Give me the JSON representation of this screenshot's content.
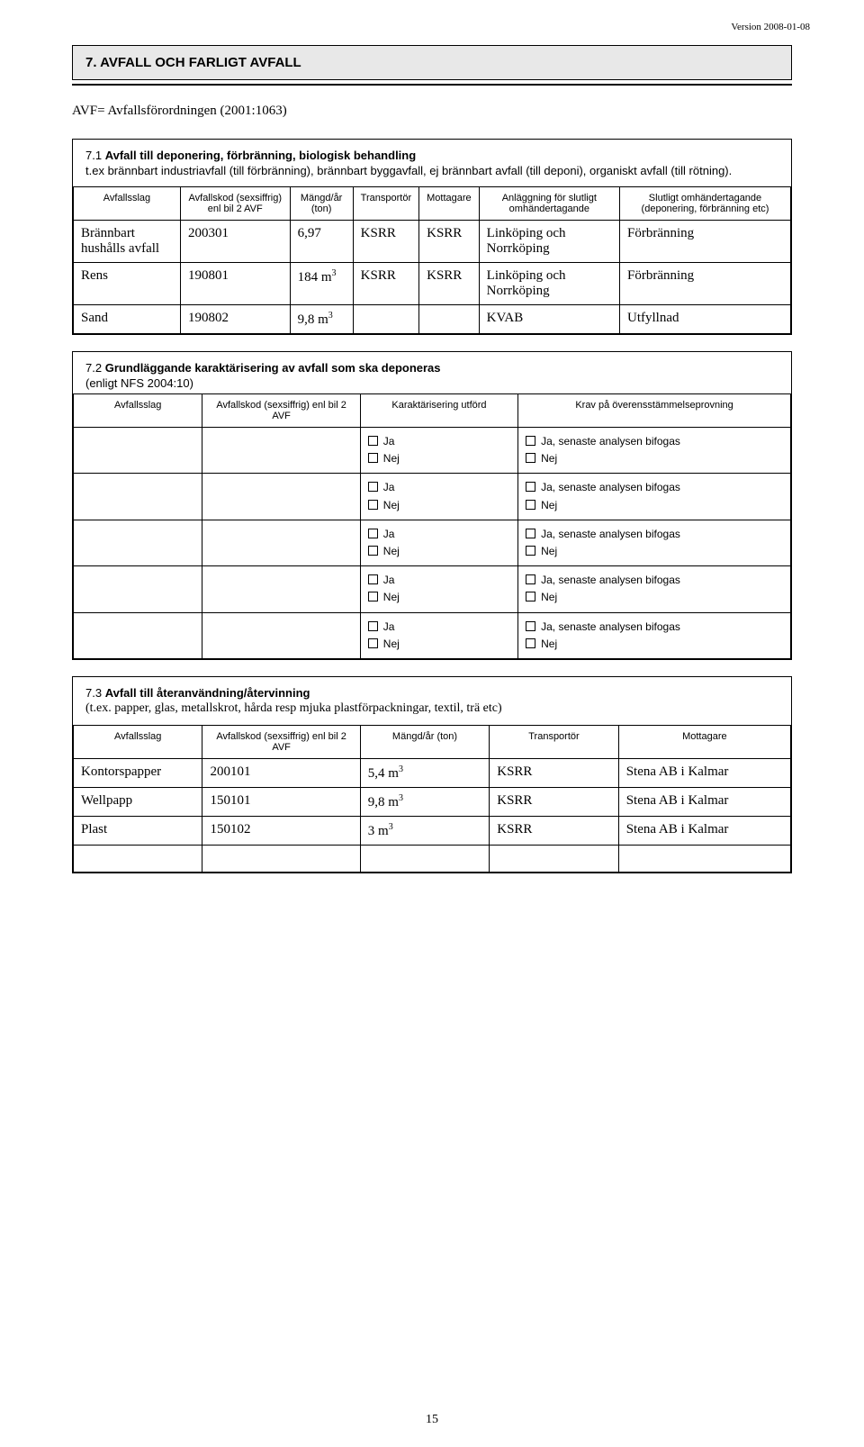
{
  "version": "Version 2008-01-08",
  "heading_main": "7.  AVFALL OCH FARLIGT AVFALL",
  "abbreviation": "AVF= Avfallsförordningen (2001:1063)",
  "section71": {
    "num": "7.1",
    "title": "Avfall till deponering, förbränning, biologisk behandling",
    "desc": "t.ex brännbart industriavfall (till förbränning), brännbart byggavfall, ej brännbart avfall (till deponi), organiskt avfall (till rötning).",
    "cols": [
      "Avfallsslag",
      "Avfallskod (sexsiffrig) enl bil 2 AVF",
      "Mängd/år (ton)",
      "Transportör",
      "Mottagare",
      "Anläggning för slutligt omhändertagande",
      "Slutligt omhändertagande (deponering, förbränning etc)"
    ],
    "rows": [
      [
        "Brännbart hushålls avfall",
        "200301",
        "6,97",
        "KSRR",
        "KSRR",
        "Linköping och Norrköping",
        "Förbränning"
      ],
      [
        "Rens",
        "190801",
        "184 m³",
        "KSRR",
        "KSRR",
        "Linköping och Norrköping",
        "Förbränning"
      ],
      [
        "Sand",
        "190802",
        "9,8 m³",
        "",
        "",
        "KVAB",
        "Utfyllnad"
      ]
    ]
  },
  "section72": {
    "num": "7.2",
    "title": "Grundläggande karaktärisering av avfall som ska deponeras",
    "note": "(enligt NFS 2004:10)",
    "cols": [
      "Avfallsslag",
      "Avfallskod (sexsiffrig) enl bil 2 AVF",
      "Karaktärisering utförd",
      "Krav på överensstämmelseprovning"
    ],
    "ck_ja": "Ja",
    "ck_nej": "Nej",
    "ck_ja_long": "Ja, senaste analysen bifogas",
    "row_count": 5
  },
  "section73": {
    "num": "7.3",
    "title": "Avfall till återanvändning/återvinning",
    "desc": "(t.ex. papper, glas, metallskrot, hårda resp mjuka plastförpackningar, textil, trä etc)",
    "cols": [
      "Avfallsslag",
      "Avfallskod (sexsiffrig) enl bil 2 AVF",
      "Mängd/år (ton)",
      "Transportör",
      "Mottagare"
    ],
    "rows": [
      [
        "Kontors­papper",
        "200101",
        "5,4 m³",
        "KSRR",
        "Stena AB i Kalmar"
      ],
      [
        "Wellpapp",
        "150101",
        "9,8 m³",
        "KSRR",
        "Stena AB i Kalmar"
      ],
      [
        "Plast",
        "150102",
        "3 m³",
        "KSRR",
        "Stena AB i Kalmar"
      ],
      [
        "",
        "",
        "",
        "",
        ""
      ]
    ]
  },
  "page_number": "15"
}
